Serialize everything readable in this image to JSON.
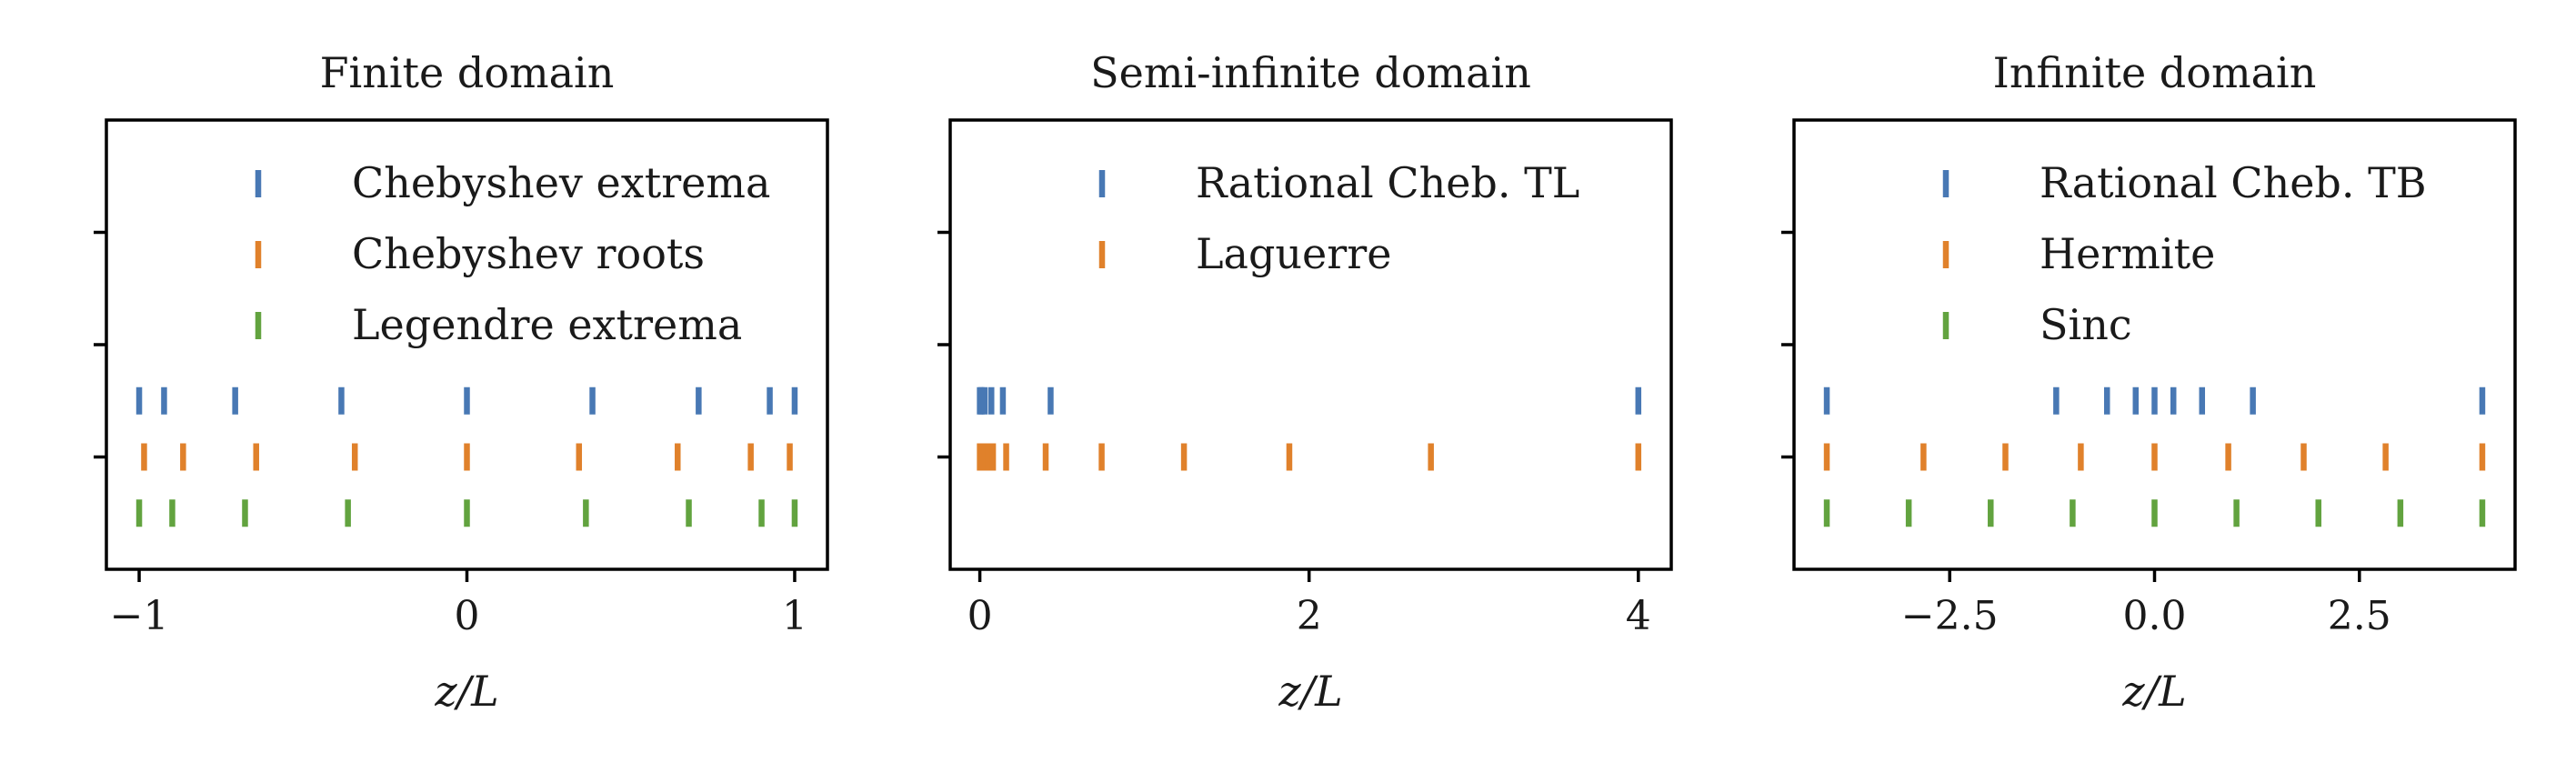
{
  "colors": {
    "blue": "#4878b4",
    "orange": "#e0812b",
    "green": "#62a33f",
    "frame": "#000000"
  },
  "chart_data": [
    {
      "type": "scatter",
      "title": "Finite domain",
      "xlabel": "z/L",
      "xlim": [
        -1.1,
        1.1
      ],
      "ylim": [
        0,
        4
      ],
      "xticks": [
        -1,
        0,
        1
      ],
      "xtick_labels": [
        "−1",
        "0",
        "1"
      ],
      "yticks": [
        1,
        2,
        3
      ],
      "series": [
        {
          "name": "Chebyshev extrema",
          "color": "blue",
          "y": 1.5,
          "x": [
            -1.0,
            -0.924,
            -0.707,
            -0.383,
            0.0,
            0.383,
            0.707,
            0.924,
            1.0
          ]
        },
        {
          "name": "Chebyshev roots",
          "color": "orange",
          "y": 1.0,
          "x": [
            -0.985,
            -0.866,
            -0.643,
            -0.342,
            0.0,
            0.342,
            0.643,
            0.866,
            0.985
          ]
        },
        {
          "name": "Legendre extrema",
          "color": "green",
          "y": 0.5,
          "x": [
            -1.0,
            -0.899,
            -0.677,
            -0.363,
            0.0,
            0.363,
            0.677,
            0.899,
            1.0
          ]
        }
      ]
    },
    {
      "type": "scatter",
      "title": "Semi-infinite domain",
      "xlabel": "z/L",
      "xlim": [
        -0.09,
        2.1
      ],
      "ylim": [
        0,
        4
      ],
      "xticks": [
        0,
        2,
        4
      ],
      "xtick_labels": [
        "0",
        "2",
        "4"
      ],
      "tick_scale": 0.5,
      "yticks": [
        1,
        2,
        3
      ],
      "series": [
        {
          "name": "Rational Cheb. TL",
          "color": "blue",
          "y": 1.5,
          "x": [
            0.0,
            0.005,
            0.015,
            0.035,
            0.07,
            0.215,
            2.0
          ]
        },
        {
          "name": "Laguerre",
          "color": "orange",
          "y": 1.0,
          "x": [
            0.0,
            0.01,
            0.025,
            0.04,
            0.08,
            0.2,
            0.37,
            0.62,
            0.94,
            1.37,
            2.0
          ]
        }
      ]
    },
    {
      "type": "scatter",
      "title": "Infinite domain",
      "xlabel": "z/L",
      "xlim": [
        -4.4,
        4.4
      ],
      "ylim": [
        0,
        4
      ],
      "xticks": [
        -2.5,
        0.0,
        2.5
      ],
      "xtick_labels": [
        "−2.5",
        "0.0",
        "2.5"
      ],
      "yticks": [
        1,
        2,
        3
      ],
      "series": [
        {
          "name": "Rational Cheb. TB",
          "color": "blue",
          "y": 1.5,
          "x": [
            -4.0,
            -1.2,
            -0.58,
            -0.23,
            0.0,
            0.23,
            0.58,
            1.2,
            4.0
          ]
        },
        {
          "name": "Hermite",
          "color": "orange",
          "y": 1.0,
          "x": [
            -4.0,
            -2.82,
            -1.82,
            -0.9,
            0.0,
            0.9,
            1.82,
            2.82,
            4.0
          ]
        },
        {
          "name": "Sinc",
          "color": "green",
          "y": 0.5,
          "x": [
            -4.0,
            -3.0,
            -2.0,
            -1.0,
            0.0,
            1.0,
            2.0,
            3.0,
            4.0
          ]
        }
      ]
    }
  ]
}
